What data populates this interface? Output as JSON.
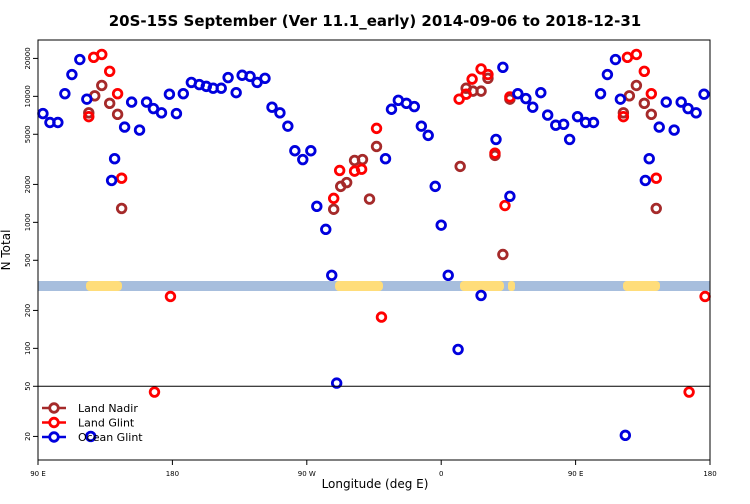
{
  "chart_data": {
    "type": "scatter",
    "title": "20S-15S September (Ver 11.1_early)   2014-09-06 to 2018-12-31",
    "x_label": "Longitude (deg E)",
    "y_label": "N Total",
    "xlim": [
      90,
      540
    ],
    "xticks": [
      {
        "value": 90,
        "label": "90 E"
      },
      180,
      {
        "value": 270,
        "label": "90 W"
      },
      {
        "value": 360,
        "label": "0"
      },
      {
        "value": 450,
        "label": "90 E"
      },
      {
        "value": 540,
        "label": "180"
      }
    ],
    "ylim": [
      13,
      28000
    ],
    "log_y": true,
    "yticks": [
      20,
      50,
      100,
      200,
      500,
      1000,
      2000,
      5000,
      10000,
      20000
    ],
    "reference_line": 50,
    "legend": "lower left",
    "series": [
      {
        "name": "Land Nadir",
        "color": "#a52a2a",
        "x": [
          124,
          128,
          132.7,
          138,
          143.3,
          146,
          288,
          292.7,
          296.7,
          302,
          307.3,
          312,
          316.7,
          372.7,
          376.7,
          381.3,
          386.7,
          391.3,
          396,
          401.3,
          406,
          482,
          486,
          490.7,
          496,
          500.7,
          504
        ],
        "values": [
          7400,
          10100,
          12200,
          8800,
          7200,
          1290,
          1270,
          1930,
          2070,
          3100,
          3150,
          1530,
          4000,
          2780,
          11600,
          11000,
          11000,
          13900,
          3400,
          556,
          9500,
          7400,
          10100,
          12200,
          8800,
          7200,
          1290
        ]
      },
      {
        "name": "Land Glint",
        "color": "#ff0000",
        "x": [
          124,
          127.3,
          132.7,
          138,
          143.3,
          146,
          168,
          178.7,
          288,
          292,
          302,
          306.7,
          316.7,
          320,
          372,
          376.7,
          380.7,
          386.7,
          391.3,
          396,
          402.7,
          406,
          482,
          484.7,
          490.7,
          496,
          500.7,
          504,
          526,
          536.7
        ],
        "values": [
          6900,
          20400,
          21500,
          15800,
          10500,
          2240,
          45,
          258,
          1550,
          2580,
          2550,
          2640,
          5570,
          177,
          9500,
          10400,
          13700,
          16500,
          14900,
          3540,
          1360,
          9900,
          6900,
          20400,
          21500,
          15800,
          10500,
          2240,
          45,
          258
        ]
      },
      {
        "name": "Ocean Glint",
        "color": "#0000dd",
        "x": [
          93.3,
          98,
          103.3,
          108,
          112.7,
          118,
          122.7,
          125.3,
          139.3,
          141.3,
          148,
          152.7,
          158,
          162.7,
          167.3,
          172.7,
          178,
          182.7,
          187.3,
          192.7,
          198,
          202.7,
          207.3,
          212.7,
          217.3,
          222.7,
          226.7,
          232,
          236.7,
          242,
          246.7,
          252,
          257.3,
          262,
          267.3,
          272.7,
          276.7,
          282.7,
          286.7,
          290,
          322.7,
          326.7,
          331.3,
          336.7,
          342,
          346.7,
          351.3,
          356,
          360,
          364.7,
          371.3,
          386.7,
          396.7,
          401.3,
          406,
          411.3,
          416.7,
          421.3,
          426.7,
          431.3,
          436.7,
          442,
          446,
          451.3,
          456.7,
          462,
          466.7,
          471.3,
          476.7,
          480,
          483.3,
          496.7,
          499.3,
          506,
          510.7,
          516,
          520.7,
          525.3,
          530.7,
          536
        ],
        "values": [
          7300,
          6200,
          6200,
          10500,
          14900,
          19600,
          9500,
          20,
          2150,
          3200,
          5700,
          9000,
          5400,
          9000,
          8000,
          7400,
          10400,
          7300,
          10500,
          12900,
          12400,
          12000,
          11600,
          11600,
          14100,
          10700,
          14700,
          14400,
          12900,
          13900,
          8200,
          7400,
          5800,
          3700,
          3150,
          3700,
          1340,
          880,
          380,
          53,
          3200,
          7900,
          9300,
          8800,
          8300,
          5800,
          4900,
          1930,
          950,
          380,
          98,
          263,
          4550,
          17000,
          1610,
          10500,
          9600,
          8200,
          10700,
          7100,
          5900,
          6000,
          4550,
          6900,
          6200,
          6200,
          10500,
          14900,
          19600,
          9500,
          20.4,
          2150,
          3200,
          5700,
          9000,
          5400,
          9000,
          8000,
          7400,
          10400
        ]
      }
    ]
  }
}
